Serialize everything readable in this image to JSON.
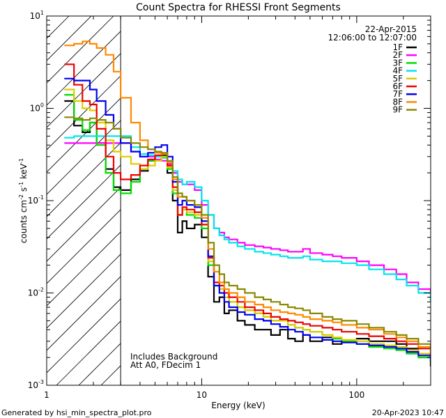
{
  "chart_data": {
    "type": "line",
    "title": "Count Spectra for RHESSI Front Segments",
    "xlabel": "Energy (keV)",
    "ylabel_parts": {
      "a": "counts cm",
      "b": "-2",
      "c": " s",
      "d": "-1",
      "e": " keV",
      "f": "-1"
    },
    "xscale": "log",
    "yscale": "log",
    "xlim": [
      1,
      300
    ],
    "ylim": [
      0.001,
      10
    ],
    "x_ticks": [
      {
        "value": 1,
        "label": "1"
      },
      {
        "value": 10,
        "label": "10"
      },
      {
        "value": 100,
        "label": "100"
      }
    ],
    "y_ticks": [
      {
        "value": 0.001,
        "base": "10",
        "exp": "-3"
      },
      {
        "value": 0.01,
        "base": "10",
        "exp": "-2"
      },
      {
        "value": 0.1,
        "base": "10",
        "exp": "-1"
      },
      {
        "value": 1,
        "base": "10",
        "exp": "0"
      },
      {
        "value": 10,
        "base": "10",
        "exp": "1"
      }
    ],
    "shaded_region": {
      "x_min": 1,
      "x_max": 3,
      "style": "diagonal hatch"
    },
    "date": "22-Apr-2015",
    "time_range": "12:06:00 to 12:07:00",
    "notes": [
      "Includes Background",
      "Att A0, FDecim 1"
    ],
    "legend_position": "top-right",
    "series": [
      {
        "name": "1F",
        "color": "#000000",
        "x": [
          1.3,
          1.5,
          1.7,
          1.9,
          2.1,
          2.4,
          2.7,
          3.0,
          3.5,
          4.0,
          4.5,
          5.0,
          5.5,
          6.0,
          6.5,
          7.0,
          7.5,
          8.0,
          9.0,
          10.0,
          11.0,
          12.0,
          13.0,
          14.0,
          15.0,
          17.0,
          19.0,
          22.0,
          25.0,
          28.0,
          32.0,
          36.0,
          40.0,
          45.0,
          50.0,
          60.0,
          70.0,
          80.0,
          100.0,
          120.0,
          150.0,
          180.0,
          210.0,
          250.0,
          300.0
        ],
        "y": [
          1.2,
          0.65,
          0.55,
          0.7,
          0.42,
          0.22,
          0.14,
          0.13,
          0.17,
          0.21,
          0.27,
          0.3,
          0.31,
          0.2,
          0.1,
          0.045,
          0.06,
          0.05,
          0.055,
          0.04,
          0.015,
          0.008,
          0.009,
          0.006,
          0.0065,
          0.005,
          0.0045,
          0.004,
          0.004,
          0.0035,
          0.004,
          0.0032,
          0.003,
          0.0035,
          0.003,
          0.0033,
          0.0028,
          0.003,
          0.0032,
          0.003,
          0.003,
          0.0028,
          0.0025,
          0.0022,
          0.0016
        ]
      },
      {
        "name": "2F",
        "color": "#ff00ff",
        "x": [
          1.3,
          1.5,
          1.7,
          1.9,
          2.1,
          2.4,
          2.7,
          3.0,
          3.5,
          4.0,
          4.5,
          5.0,
          5.5,
          6.0,
          6.5,
          7.0,
          7.5,
          8.0,
          9.0,
          10.0,
          11.0,
          12.0,
          13.0,
          14.0,
          15.0,
          17.0,
          19.0,
          22.0,
          25.0,
          28.0,
          32.0,
          36.0,
          40.0,
          45.0,
          50.0,
          60.0,
          70.0,
          80.0,
          100.0,
          120.0,
          150.0,
          180.0,
          210.0,
          250.0,
          300.0
        ],
        "y": [
          0.42,
          0.42,
          0.42,
          0.42,
          0.42,
          0.42,
          0.42,
          0.42,
          0.34,
          0.3,
          0.3,
          0.28,
          0.27,
          0.25,
          0.2,
          0.16,
          0.15,
          0.15,
          0.13,
          0.09,
          0.07,
          0.05,
          0.045,
          0.04,
          0.038,
          0.035,
          0.033,
          0.032,
          0.031,
          0.03,
          0.029,
          0.028,
          0.028,
          0.03,
          0.027,
          0.026,
          0.025,
          0.024,
          0.022,
          0.02,
          0.018,
          0.016,
          0.013,
          0.011,
          0.01
        ]
      },
      {
        "name": "3F",
        "color": "#00dd00",
        "x": [
          1.3,
          1.5,
          1.7,
          1.9,
          2.1,
          2.4,
          2.7,
          3.0,
          3.5,
          4.0,
          4.5,
          5.0,
          5.5,
          6.0,
          6.5,
          7.0,
          7.5,
          8.0,
          9.0,
          10.0,
          11.0,
          12.0,
          13.0,
          14.0,
          15.0,
          17.0,
          19.0,
          22.0,
          25.0,
          28.0,
          32.0,
          36.0,
          40.0,
          45.0,
          50.0,
          60.0,
          70.0,
          80.0,
          100.0,
          120.0,
          150.0,
          180.0,
          210.0,
          250.0,
          300.0
        ],
        "y": [
          1.4,
          0.75,
          0.58,
          0.7,
          0.4,
          0.2,
          0.13,
          0.12,
          0.16,
          0.22,
          0.27,
          0.3,
          0.3,
          0.22,
          0.12,
          0.07,
          0.08,
          0.07,
          0.065,
          0.05,
          0.02,
          0.012,
          0.011,
          0.009,
          0.008,
          0.007,
          0.0065,
          0.006,
          0.0055,
          0.005,
          0.005,
          0.0045,
          0.0042,
          0.004,
          0.0038,
          0.0035,
          0.0032,
          0.003,
          0.0028,
          0.0026,
          0.0025,
          0.0024,
          0.0022,
          0.002,
          0.0018
        ]
      },
      {
        "name": "4F",
        "color": "#00e5ee",
        "x": [
          1.3,
          1.5,
          1.7,
          1.9,
          2.1,
          2.4,
          2.7,
          3.0,
          3.5,
          4.0,
          4.5,
          5.0,
          5.5,
          6.0,
          6.5,
          7.0,
          7.5,
          8.0,
          9.0,
          10.0,
          11.0,
          12.0,
          13.0,
          14.0,
          15.0,
          17.0,
          19.0,
          22.0,
          25.0,
          28.0,
          32.0,
          36.0,
          40.0,
          45.0,
          50.0,
          60.0,
          70.0,
          80.0,
          100.0,
          120.0,
          150.0,
          180.0,
          210.0,
          250.0,
          300.0
        ],
        "y": [
          0.48,
          0.5,
          0.5,
          0.5,
          0.5,
          0.5,
          0.5,
          0.5,
          0.38,
          0.32,
          0.31,
          0.3,
          0.29,
          0.26,
          0.21,
          0.17,
          0.15,
          0.16,
          0.14,
          0.1,
          0.07,
          0.05,
          0.042,
          0.038,
          0.035,
          0.032,
          0.03,
          0.028,
          0.027,
          0.026,
          0.025,
          0.024,
          0.024,
          0.025,
          0.023,
          0.022,
          0.022,
          0.021,
          0.02,
          0.018,
          0.016,
          0.014,
          0.012,
          0.01,
          0.008
        ]
      },
      {
        "name": "5F",
        "color": "#ddcc00",
        "x": [
          1.3,
          1.5,
          1.7,
          1.9,
          2.1,
          2.4,
          2.7,
          3.0,
          3.5,
          4.0,
          4.5,
          5.0,
          5.5,
          6.0,
          6.5,
          7.0,
          7.5,
          8.0,
          9.0,
          10.0,
          11.0,
          12.0,
          13.0,
          14.0,
          15.0,
          17.0,
          19.0,
          22.0,
          25.0,
          28.0,
          32.0,
          36.0,
          40.0,
          45.0,
          50.0,
          60.0,
          70.0,
          80.0,
          100.0,
          120.0,
          150.0,
          180.0,
          210.0,
          250.0,
          300.0
        ],
        "y": [
          1.6,
          1.2,
          1.0,
          0.95,
          0.7,
          0.45,
          0.34,
          0.3,
          0.25,
          0.22,
          0.24,
          0.27,
          0.3,
          0.23,
          0.13,
          0.07,
          0.08,
          0.075,
          0.07,
          0.055,
          0.022,
          0.013,
          0.011,
          0.009,
          0.008,
          0.007,
          0.0065,
          0.006,
          0.0055,
          0.005,
          0.005,
          0.0045,
          0.0042,
          0.004,
          0.0038,
          0.0035,
          0.0033,
          0.0031,
          0.003,
          0.0028,
          0.0027,
          0.0026,
          0.0024,
          0.0022,
          0.002
        ]
      },
      {
        "name": "6F",
        "color": "#ee0000",
        "x": [
          1.3,
          1.5,
          1.7,
          1.9,
          2.1,
          2.4,
          2.7,
          3.0,
          3.5,
          4.0,
          4.5,
          5.0,
          5.5,
          6.0,
          6.5,
          7.0,
          7.5,
          8.0,
          9.0,
          10.0,
          11.0,
          12.0,
          13.0,
          14.0,
          15.0,
          17.0,
          19.0,
          22.0,
          25.0,
          28.0,
          32.0,
          36.0,
          40.0,
          45.0,
          50.0,
          60.0,
          70.0,
          80.0,
          100.0,
          120.0,
          150.0,
          180.0,
          210.0,
          250.0,
          300.0
        ],
        "y": [
          3.0,
          1.8,
          1.2,
          1.1,
          0.6,
          0.3,
          0.2,
          0.17,
          0.19,
          0.24,
          0.28,
          0.31,
          0.32,
          0.24,
          0.14,
          0.07,
          0.085,
          0.08,
          0.075,
          0.055,
          0.024,
          0.013,
          0.012,
          0.01,
          0.009,
          0.008,
          0.007,
          0.0065,
          0.006,
          0.0055,
          0.0052,
          0.005,
          0.0048,
          0.0046,
          0.0044,
          0.0042,
          0.004,
          0.0038,
          0.0036,
          0.0034,
          0.0032,
          0.003,
          0.0028,
          0.0025,
          0.0021
        ]
      },
      {
        "name": "7F",
        "color": "#0000ee",
        "x": [
          1.3,
          1.5,
          1.7,
          1.9,
          2.1,
          2.4,
          2.7,
          3.0,
          3.5,
          4.0,
          4.5,
          5.0,
          5.5,
          6.0,
          6.5,
          7.0,
          7.5,
          8.0,
          9.0,
          10.0,
          11.0,
          12.0,
          13.0,
          14.0,
          15.0,
          17.0,
          19.0,
          22.0,
          25.0,
          28.0,
          32.0,
          36.0,
          40.0,
          45.0,
          50.0,
          60.0,
          70.0,
          80.0,
          100.0,
          120.0,
          150.0,
          180.0,
          210.0,
          250.0,
          300.0
        ],
        "y": [
          2.1,
          2.0,
          2.0,
          1.6,
          1.2,
          0.85,
          0.6,
          0.42,
          0.34,
          0.3,
          0.33,
          0.38,
          0.4,
          0.3,
          0.16,
          0.09,
          0.1,
          0.09,
          0.085,
          0.06,
          0.025,
          0.012,
          0.01,
          0.008,
          0.007,
          0.0062,
          0.0058,
          0.0052,
          0.005,
          0.0046,
          0.0043,
          0.004,
          0.0038,
          0.0035,
          0.0033,
          0.0031,
          0.003,
          0.0029,
          0.0028,
          0.0027,
          0.0026,
          0.0025,
          0.0023,
          0.0021,
          0.0018
        ]
      },
      {
        "name": "8F",
        "color": "#ff8800",
        "x": [
          1.3,
          1.5,
          1.7,
          1.9,
          2.1,
          2.4,
          2.7,
          3.0,
          3.5,
          4.0,
          4.5,
          5.0,
          5.5,
          6.0,
          6.5,
          7.0,
          7.5,
          8.0,
          9.0,
          10.0,
          11.0,
          12.0,
          13.0,
          14.0,
          15.0,
          17.0,
          19.0,
          22.0,
          25.0,
          28.0,
          32.0,
          36.0,
          40.0,
          45.0,
          50.0,
          60.0,
          70.0,
          80.0,
          100.0,
          120.0,
          150.0,
          180.0,
          210.0,
          250.0,
          300.0
        ],
        "y": [
          4.8,
          5.0,
          5.3,
          5.0,
          4.5,
          3.8,
          2.5,
          1.3,
          0.7,
          0.45,
          0.36,
          0.33,
          0.32,
          0.26,
          0.17,
          0.11,
          0.11,
          0.1,
          0.09,
          0.065,
          0.03,
          0.017,
          0.013,
          0.011,
          0.01,
          0.009,
          0.008,
          0.0075,
          0.007,
          0.0065,
          0.0062,
          0.006,
          0.0058,
          0.0055,
          0.0052,
          0.005,
          0.0048,
          0.0045,
          0.0042,
          0.004,
          0.0036,
          0.0033,
          0.003,
          0.0026,
          0.0022
        ]
      },
      {
        "name": "9F",
        "color": "#888800",
        "x": [
          1.3,
          1.5,
          1.7,
          1.9,
          2.1,
          2.4,
          2.7,
          3.0,
          3.5,
          4.0,
          4.5,
          5.0,
          5.5,
          6.0,
          6.5,
          7.0,
          7.5,
          8.0,
          9.0,
          10.0,
          11.0,
          12.0,
          13.0,
          14.0,
          15.0,
          17.0,
          19.0,
          22.0,
          25.0,
          28.0,
          32.0,
          36.0,
          40.0,
          45.0,
          50.0,
          60.0,
          70.0,
          80.0,
          100.0,
          120.0,
          150.0,
          180.0,
          210.0,
          250.0,
          300.0
        ],
        "y": [
          0.8,
          0.78,
          0.75,
          0.78,
          0.75,
          0.7,
          0.6,
          0.48,
          0.42,
          0.38,
          0.36,
          0.34,
          0.33,
          0.27,
          0.18,
          0.12,
          0.11,
          0.1,
          0.09,
          0.07,
          0.035,
          0.02,
          0.016,
          0.013,
          0.012,
          0.011,
          0.01,
          0.009,
          0.0085,
          0.008,
          0.0075,
          0.007,
          0.0068,
          0.0065,
          0.006,
          0.0055,
          0.0052,
          0.005,
          0.0046,
          0.0042,
          0.0038,
          0.0035,
          0.0032,
          0.0028,
          0.0024
        ]
      }
    ]
  },
  "footer": {
    "generated_by": "Generated by hsi_min_spectra_plot.pro",
    "timestamp": "20-Apr-2023 10:47"
  }
}
